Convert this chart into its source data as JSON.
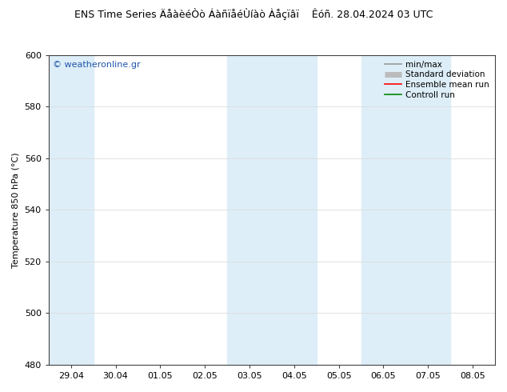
{
  "title": "ENS Time Series ÄåàèéÒò ÁàñïåéÙíàò Àåçïâï    Êóñ. 28.04.2024 03 UTC",
  "ylabel": "Temperature 850 hPa (°C)",
  "ylim": [
    480,
    600
  ],
  "yticks": [
    480,
    500,
    520,
    540,
    560,
    580,
    600
  ],
  "xtick_labels": [
    "29.04",
    "30.04",
    "01.05",
    "02.05",
    "03.05",
    "04.05",
    "05.05",
    "06.05",
    "07.05",
    "08.05"
  ],
  "background_color": "#ffffff",
  "plot_bg_color": "#ffffff",
  "shaded_band_indices": [
    0,
    4,
    5,
    7,
    8
  ],
  "shaded_band_color": "#ddeef8",
  "legend_items": [
    {
      "label": "min/max",
      "color": "#999999",
      "lw": 1.2
    },
    {
      "label": "Standard deviation",
      "color": "#bbbbbb",
      "lw": 5
    },
    {
      "label": "Ensemble mean run",
      "color": "#ff0000",
      "lw": 1.2
    },
    {
      "label": "Controll run",
      "color": "#008800",
      "lw": 1.2
    }
  ],
  "watermark": "© weatheronline.gr",
  "watermark_color": "#2255aa",
  "grid_color": "#dddddd",
  "spine_color": "#444444",
  "title_fontsize": 9,
  "ylabel_fontsize": 8,
  "tick_fontsize": 8,
  "legend_fontsize": 7.5
}
